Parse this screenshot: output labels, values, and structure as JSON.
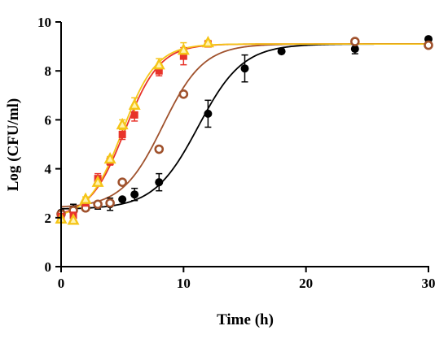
{
  "chart_data": {
    "type": "scatter",
    "title": "",
    "xlabel": "Time (h)",
    "ylabel": "Log (CFU/ml)",
    "xlim": [
      0,
      30
    ],
    "ylim": [
      0,
      10
    ],
    "x_ticks": [
      0,
      10,
      20,
      30
    ],
    "y_ticks": [
      0,
      2,
      4,
      6,
      8,
      10
    ],
    "grid": false,
    "legend": "none",
    "series": [
      {
        "color": "#000000",
        "marker": "filled-circle",
        "points": [
          {
            "x": 0,
            "y": 2.2,
            "err": 0.1
          },
          {
            "x": 1,
            "y": 2.35,
            "err": 0.2
          },
          {
            "x": 2,
            "y": 2.45,
            "err": 0.15
          },
          {
            "x": 3,
            "y": 2.5,
            "err": 0.15
          },
          {
            "x": 4,
            "y": 2.55,
            "err": 0.25
          },
          {
            "x": 5,
            "y": 2.75,
            "err": 0.05
          },
          {
            "x": 6,
            "y": 2.95,
            "err": 0.25
          },
          {
            "x": 8,
            "y": 3.45,
            "err": 0.35
          },
          {
            "x": 12,
            "y": 6.25,
            "err": 0.55
          },
          {
            "x": 15,
            "y": 8.1,
            "err": 0.55
          },
          {
            "x": 18,
            "y": 8.8,
            "err": 0.05
          },
          {
            "x": 24,
            "y": 8.9,
            "err": 0.2
          },
          {
            "x": 30,
            "y": 9.3,
            "err": 0.05
          }
        ],
        "fit": {
          "y0": 2.35,
          "ymax": 9.1,
          "x0": 11.2,
          "k": 0.55
        }
      },
      {
        "color": "#A0522D",
        "marker": "open-circle",
        "points": [
          {
            "x": 0,
            "y": 2.15,
            "err": 0.1
          },
          {
            "x": 1,
            "y": 2.3,
            "err": 0.1
          },
          {
            "x": 2,
            "y": 2.4,
            "err": 0.1
          },
          {
            "x": 3,
            "y": 2.55,
            "err": 0.1
          },
          {
            "x": 4,
            "y": 2.6,
            "err": 0.1
          },
          {
            "x": 5,
            "y": 3.45,
            "err": 0.05
          },
          {
            "x": 8,
            "y": 4.8,
            "err": 0.05
          },
          {
            "x": 10,
            "y": 7.05,
            "err": 0.05
          },
          {
            "x": 24,
            "y": 9.2,
            "err": 0.05
          },
          {
            "x": 30,
            "y": 9.05,
            "err": 0.05
          }
        ],
        "fit": {
          "y0": 2.4,
          "ymax": 9.1,
          "x0": 8.3,
          "k": 0.6
        }
      },
      {
        "color": "#E8332A",
        "marker": "filled-square",
        "points": [
          {
            "x": 0,
            "y": 2.05,
            "err": 0.1
          },
          {
            "x": 1,
            "y": 2.1,
            "err": 0.1
          },
          {
            "x": 2,
            "y": 2.6,
            "err": 0.1
          },
          {
            "x": 3,
            "y": 3.6,
            "err": 0.2
          },
          {
            "x": 4,
            "y": 4.3,
            "err": 0.15
          },
          {
            "x": 5,
            "y": 5.4,
            "err": 0.2
          },
          {
            "x": 6,
            "y": 6.2,
            "err": 0.25
          },
          {
            "x": 8,
            "y": 8.0,
            "err": 0.2
          },
          {
            "x": 10,
            "y": 8.6,
            "err": 0.35
          },
          {
            "x": 12,
            "y": 9.1,
            "err": 0.1
          }
        ],
        "fit": {
          "y0": 2.0,
          "ymax": 9.1,
          "x0": 5.2,
          "k": 0.7
        }
      },
      {
        "color": "#F5C518",
        "marker": "open-triangle",
        "points": [
          {
            "x": 0,
            "y": 1.95,
            "err": 0.1
          },
          {
            "x": 1,
            "y": 1.9,
            "err": 0.1
          },
          {
            "x": 2,
            "y": 2.75,
            "err": 0.1
          },
          {
            "x": 3,
            "y": 3.45,
            "err": 0.1
          },
          {
            "x": 4,
            "y": 4.4,
            "err": 0.1
          },
          {
            "x": 5,
            "y": 5.8,
            "err": 0.2
          },
          {
            "x": 6,
            "y": 6.6,
            "err": 0.3
          },
          {
            "x": 8,
            "y": 8.25,
            "err": 0.25
          },
          {
            "x": 10,
            "y": 8.85,
            "err": 0.3
          },
          {
            "x": 12,
            "y": 9.15,
            "err": 0.1
          }
        ],
        "fit": {
          "y0": 1.95,
          "ymax": 9.1,
          "x0": 5.0,
          "k": 0.72
        }
      }
    ]
  }
}
